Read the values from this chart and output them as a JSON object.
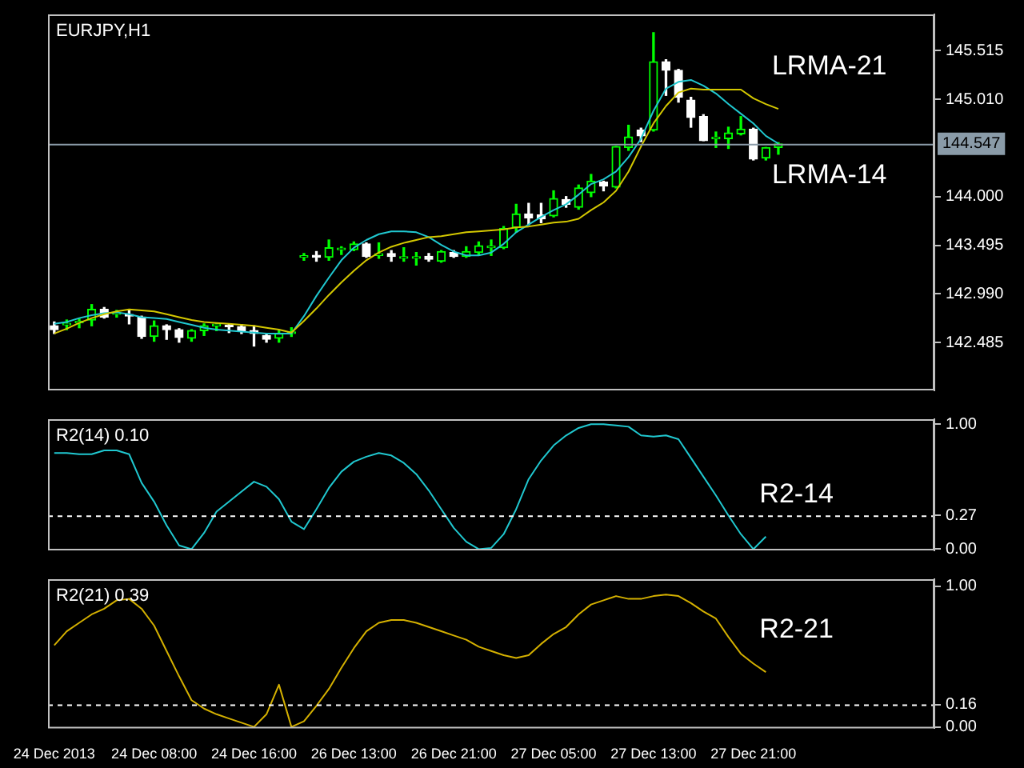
{
  "chart_data": [
    {
      "type": "candlestick",
      "title": "EURJPY,H1",
      "categories": [
        null,
        null,
        null,
        null,
        null,
        null,
        null,
        null,
        null,
        null,
        null,
        null,
        null,
        null,
        null,
        null,
        null,
        null,
        null,
        null,
        null,
        null,
        null,
        null,
        null,
        null,
        null,
        null,
        null,
        null,
        null,
        null,
        null,
        null,
        null,
        null,
        null,
        null,
        null,
        null,
        null,
        null,
        null,
        null,
        null,
        null,
        null,
        null,
        null,
        null,
        null,
        null,
        null,
        null,
        null,
        null,
        null,
        null,
        null
      ],
      "colors": [
        "#ffffff",
        "#00ff00",
        "#00ff00",
        "#00ff00",
        "#ffffff",
        "#00ff00",
        "#ffffff",
        "#ffffff",
        "#00ff00",
        "#ffffff",
        "#ffffff",
        "#00ff00",
        "#00ff00",
        "#00ff00",
        "#ffffff",
        "#ffffff",
        "#ffffff",
        "#ffffff",
        "#00ff00",
        "#00ff00",
        "#00ff00",
        "#ffffff",
        "#00ff00",
        "#00ff00",
        "#00ff00",
        "#ffffff",
        "#00ff00",
        "#ffffff",
        "#00ff00",
        "#00ff00",
        "#ffffff",
        "#00ff00",
        "#ffffff",
        "#00ff00",
        "#00ff00",
        "#00ff00",
        "#00ff00",
        "#00ff00",
        "#ffffff",
        "#ffffff",
        "#00ff00",
        "#ffffff",
        "#00ff00",
        "#00ff00",
        "#ffffff",
        "#00ff00",
        "#00ff00",
        "#ffffff",
        "#00ff00",
        "#ffffff",
        "#ffffff",
        "#ffffff",
        "#ffffff",
        "#00ff00",
        "#00ff00",
        "#00ff00",
        "#ffffff",
        "#00ff00",
        "#00ff00"
      ],
      "ohlc": [
        [
          142.66,
          142.7,
          142.58,
          142.62
        ],
        [
          142.67,
          142.72,
          142.62,
          142.68
        ],
        [
          142.69,
          142.73,
          142.64,
          142.69
        ],
        [
          142.72,
          142.88,
          142.66,
          142.83
        ],
        [
          142.83,
          142.85,
          142.74,
          142.75
        ],
        [
          142.78,
          142.82,
          142.75,
          142.79
        ],
        [
          142.77,
          142.82,
          142.68,
          142.76
        ],
        [
          142.75,
          142.76,
          142.53,
          142.55
        ],
        [
          142.55,
          142.71,
          142.5,
          142.66
        ],
        [
          142.66,
          142.67,
          142.52,
          142.62
        ],
        [
          142.62,
          142.63,
          142.49,
          142.54
        ],
        [
          142.53,
          142.62,
          142.5,
          142.61
        ],
        [
          142.61,
          142.68,
          142.56,
          142.66
        ],
        [
          142.66,
          142.69,
          142.61,
          142.66
        ],
        [
          142.66,
          142.68,
          142.59,
          142.65
        ],
        [
          142.65,
          142.67,
          142.58,
          142.61
        ],
        [
          142.61,
          142.66,
          142.45,
          142.58
        ],
        [
          142.56,
          142.58,
          142.49,
          142.52
        ],
        [
          142.53,
          142.61,
          142.49,
          142.58
        ],
        [
          142.58,
          142.64,
          142.55,
          142.59
        ],
        [
          143.37,
          143.41,
          143.34,
          143.38
        ],
        [
          143.39,
          143.43,
          143.33,
          143.37
        ],
        [
          143.37,
          143.55,
          143.34,
          143.47
        ],
        [
          143.45,
          143.48,
          143.4,
          143.46
        ],
        [
          143.45,
          143.53,
          143.44,
          143.51
        ],
        [
          143.51,
          143.52,
          143.37,
          143.38
        ],
        [
          143.39,
          143.52,
          143.36,
          143.4
        ],
        [
          143.41,
          143.44,
          143.33,
          143.38
        ],
        [
          143.36,
          143.47,
          143.33,
          143.37
        ],
        [
          143.36,
          143.42,
          143.29,
          143.36
        ],
        [
          143.38,
          143.41,
          143.33,
          143.35
        ],
        [
          143.33,
          143.44,
          143.32,
          143.43
        ],
        [
          143.42,
          143.44,
          143.37,
          143.38
        ],
        [
          143.38,
          143.48,
          143.37,
          143.43
        ],
        [
          143.42,
          143.53,
          143.39,
          143.49
        ],
        [
          143.47,
          143.55,
          143.39,
          143.47
        ],
        [
          143.47,
          143.69,
          143.46,
          143.67
        ],
        [
          143.68,
          143.92,
          143.63,
          143.82
        ],
        [
          143.82,
          143.93,
          143.71,
          143.78
        ],
        [
          143.81,
          143.93,
          143.73,
          143.77
        ],
        [
          143.8,
          144.06,
          143.79,
          143.98
        ],
        [
          143.97,
          144.0,
          143.89,
          143.92
        ],
        [
          143.89,
          144.12,
          143.87,
          144.09
        ],
        [
          144.04,
          144.23,
          144.0,
          144.16
        ],
        [
          144.15,
          144.16,
          144.06,
          144.11
        ],
        [
          144.1,
          144.52,
          144.09,
          144.52
        ],
        [
          144.51,
          144.74,
          144.48,
          144.62
        ],
        [
          144.69,
          144.71,
          144.57,
          144.63
        ],
        [
          144.69,
          145.7,
          144.68,
          145.4
        ],
        [
          145.4,
          145.42,
          145.05,
          145.31
        ],
        [
          145.31,
          145.32,
          144.98,
          145.03
        ],
        [
          145.0,
          145.03,
          144.72,
          144.82
        ],
        [
          144.83,
          144.85,
          144.58,
          144.58
        ],
        [
          144.6,
          144.67,
          144.51,
          144.6
        ],
        [
          144.6,
          144.72,
          144.5,
          144.66
        ],
        [
          144.65,
          144.83,
          144.64,
          144.7
        ],
        [
          144.7,
          144.71,
          144.38,
          144.39
        ],
        [
          144.4,
          144.51,
          144.38,
          144.51
        ],
        [
          144.51,
          144.56,
          144.44,
          144.547
        ]
      ],
      "series": [
        {
          "name": "LRMA-21",
          "type": "line",
          "color": "#d4c800",
          "values": [
            142.58,
            142.63,
            142.69,
            142.74,
            142.78,
            142.81,
            142.83,
            142.82,
            142.81,
            142.78,
            142.75,
            142.72,
            142.7,
            142.69,
            142.68,
            142.67,
            142.66,
            142.64,
            142.62,
            142.59,
            142.71,
            142.84,
            142.98,
            143.11,
            143.23,
            143.34,
            143.42,
            143.48,
            143.52,
            143.55,
            143.58,
            143.59,
            143.61,
            143.63,
            143.64,
            143.65,
            143.66,
            143.68,
            143.69,
            143.71,
            143.73,
            143.74,
            143.77,
            143.86,
            143.94,
            144.06,
            144.26,
            144.52,
            144.76,
            144.94,
            145.08,
            145.12,
            145.11,
            145.11,
            145.11,
            145.11,
            145.02,
            144.96,
            144.91
          ]
        },
        {
          "name": "LRMA-14",
          "type": "line",
          "color": "#20c8d0",
          "values": [
            142.68,
            142.7,
            142.74,
            142.77,
            142.79,
            142.8,
            142.78,
            142.75,
            142.74,
            142.73,
            142.7,
            142.67,
            142.64,
            142.62,
            142.61,
            142.6,
            142.59,
            142.58,
            142.58,
            142.58,
            142.76,
            142.97,
            143.16,
            143.34,
            143.47,
            143.55,
            143.61,
            143.64,
            143.64,
            143.63,
            143.58,
            143.5,
            143.43,
            143.39,
            143.39,
            143.42,
            143.51,
            143.63,
            143.71,
            143.79,
            143.86,
            143.92,
            144.02,
            144.13,
            144.18,
            144.26,
            144.41,
            144.6,
            144.89,
            145.12,
            145.19,
            145.21,
            145.15,
            145.07,
            144.96,
            144.86,
            144.76,
            144.63,
            144.55
          ]
        }
      ],
      "ylim": [
        141.99,
        145.89
      ],
      "yticks": [
        142.485,
        {
          "value": 142.99,
          "label": "142.990"
        },
        143.495,
        {
          "value": 144,
          "label": "144.000"
        },
        {
          "value": 145.01,
          "label": "145.010"
        },
        145.515
      ],
      "ref_lines": [
        {
          "axis": "y",
          "value": 144.547,
          "label": "144.547",
          "color": "#8a9ba8"
        }
      ],
      "tick_labels": "y"
    },
    {
      "type": "line",
      "title": "R2(14) 0.10",
      "categories": [
        null,
        null,
        null,
        null,
        null,
        null,
        null,
        null,
        null,
        null,
        null,
        null,
        null,
        null,
        null,
        null,
        null,
        null,
        null,
        null,
        null,
        null,
        null,
        null,
        null,
        null,
        null,
        null,
        null,
        null,
        null,
        null,
        null,
        null,
        null,
        null,
        null,
        null,
        null,
        null,
        null,
        null,
        null,
        null,
        null,
        null,
        null,
        null,
        null,
        null,
        null,
        null,
        null,
        null,
        null,
        null,
        null,
        null,
        null
      ],
      "series": [
        {
          "name": "R2-14",
          "color": "#20c8d0",
          "values": [
            0.77,
            0.77,
            0.76,
            0.76,
            0.79,
            0.79,
            0.76,
            0.53,
            0.38,
            0.19,
            0.03,
            0.0,
            0.13,
            0.3,
            0.38,
            0.46,
            0.54,
            0.5,
            0.4,
            0.22,
            0.16,
            0.32,
            0.49,
            0.62,
            0.7,
            0.74,
            0.77,
            0.75,
            0.69,
            0.6,
            0.47,
            0.32,
            0.17,
            0.06,
            0.0,
            0.01,
            0.12,
            0.32,
            0.56,
            0.71,
            0.83,
            0.91,
            0.97,
            1.0,
            1.0,
            0.99,
            0.98,
            0.91,
            0.9,
            0.91,
            0.88,
            0.73,
            0.58,
            0.43,
            0.27,
            0.12,
            0.0,
            0.1,
            null
          ]
        }
      ],
      "ylim": [
        -0.01,
        1.04
      ],
      "yticks": [
        {
          "value": 1,
          "label": "1.00"
        },
        {
          "value": 0.27,
          "label": "0.27"
        },
        {
          "value": 0,
          "label": "0.00"
        }
      ],
      "ref_lines": [
        {
          "axis": "y",
          "value": 0.27,
          "color": "#ffffff",
          "line_style": "dashed"
        }
      ],
      "tick_labels": "y"
    },
    {
      "type": "line",
      "title": "R2(21) 0.39",
      "categories": [
        "24 Dec 2013",
        null,
        null,
        null,
        null,
        null,
        null,
        null,
        "24 Dec 08:00",
        null,
        null,
        null,
        null,
        null,
        null,
        null,
        "24 Dec 16:00",
        null,
        null,
        null,
        null,
        null,
        null,
        null,
        "26 Dec 13:00",
        null,
        null,
        null,
        null,
        null,
        null,
        null,
        "26 Dec 21:00",
        null,
        null,
        null,
        null,
        null,
        null,
        null,
        "27 Dec 05:00",
        null,
        null,
        null,
        null,
        null,
        null,
        null,
        "27 Dec 13:00",
        null,
        null,
        null,
        null,
        null,
        null,
        null,
        "27 Dec 21:00",
        null,
        null
      ],
      "series": [
        {
          "name": "R2-21",
          "color": "#d4b000",
          "values": [
            0.58,
            0.68,
            0.74,
            0.8,
            0.84,
            0.9,
            0.91,
            0.84,
            0.72,
            0.54,
            0.36,
            0.19,
            0.13,
            0.09,
            0.06,
            0.03,
            0.0,
            0.09,
            0.3,
            0.0,
            0.04,
            0.15,
            0.27,
            0.42,
            0.56,
            0.68,
            0.74,
            0.76,
            0.76,
            0.74,
            0.71,
            0.68,
            0.65,
            0.62,
            0.57,
            0.54,
            0.51,
            0.49,
            0.51,
            0.59,
            0.66,
            0.71,
            0.8,
            0.87,
            0.9,
            0.93,
            0.91,
            0.91,
            0.93,
            0.94,
            0.93,
            0.88,
            0.82,
            0.77,
            0.64,
            0.52,
            0.45,
            0.39,
            null
          ]
        }
      ],
      "ylim": [
        -0.01,
        1.05
      ],
      "yticks": [
        {
          "value": 1,
          "label": "1.00"
        },
        {
          "value": 0.16,
          "label": "0.16"
        },
        {
          "value": 0,
          "label": "0.00"
        }
      ],
      "ref_lines": [
        {
          "axis": "y",
          "value": 0.16,
          "color": "#ffffff",
          "line_style": "dashed"
        }
      ]
    }
  ]
}
